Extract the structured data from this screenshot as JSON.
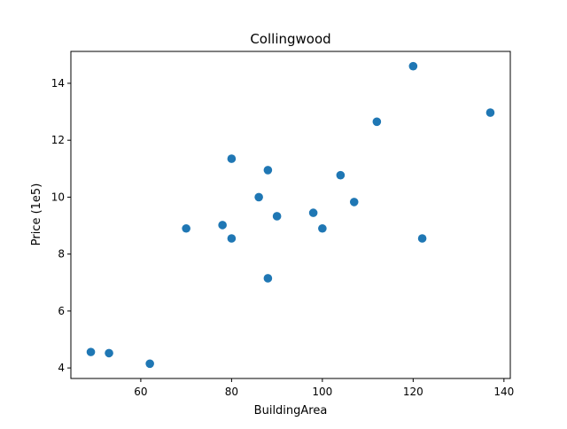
{
  "chart_data": {
    "type": "scatter",
    "title": "Collingwood",
    "xlabel": "BuildingArea",
    "ylabel": "Price (1e5)",
    "xlim": [
      44.6,
      141.4
    ],
    "ylim": [
      3.63,
      15.12
    ],
    "xticks": [
      60,
      80,
      100,
      120,
      140
    ],
    "yticks": [
      4,
      6,
      8,
      10,
      12,
      14
    ],
    "xtick_labels": [
      "60",
      "80",
      "100",
      "120",
      "140"
    ],
    "ytick_labels": [
      "4",
      "6",
      "8",
      "10",
      "12",
      "14"
    ],
    "grid": false,
    "legend": "none",
    "marker_color": "#1f77b4",
    "points": [
      {
        "x": 49,
        "y": 4.56
      },
      {
        "x": 53,
        "y": 4.52
      },
      {
        "x": 62,
        "y": 4.15
      },
      {
        "x": 70,
        "y": 8.9
      },
      {
        "x": 78,
        "y": 9.02
      },
      {
        "x": 80,
        "y": 11.35
      },
      {
        "x": 80,
        "y": 8.55
      },
      {
        "x": 86,
        "y": 10.0
      },
      {
        "x": 88,
        "y": 10.95
      },
      {
        "x": 88,
        "y": 7.15
      },
      {
        "x": 90,
        "y": 9.33
      },
      {
        "x": 98,
        "y": 9.45
      },
      {
        "x": 100,
        "y": 8.9
      },
      {
        "x": 104,
        "y": 10.77
      },
      {
        "x": 107,
        "y": 9.83
      },
      {
        "x": 112,
        "y": 12.65
      },
      {
        "x": 120,
        "y": 14.6
      },
      {
        "x": 122,
        "y": 8.55
      },
      {
        "x": 137,
        "y": 12.97
      }
    ]
  }
}
